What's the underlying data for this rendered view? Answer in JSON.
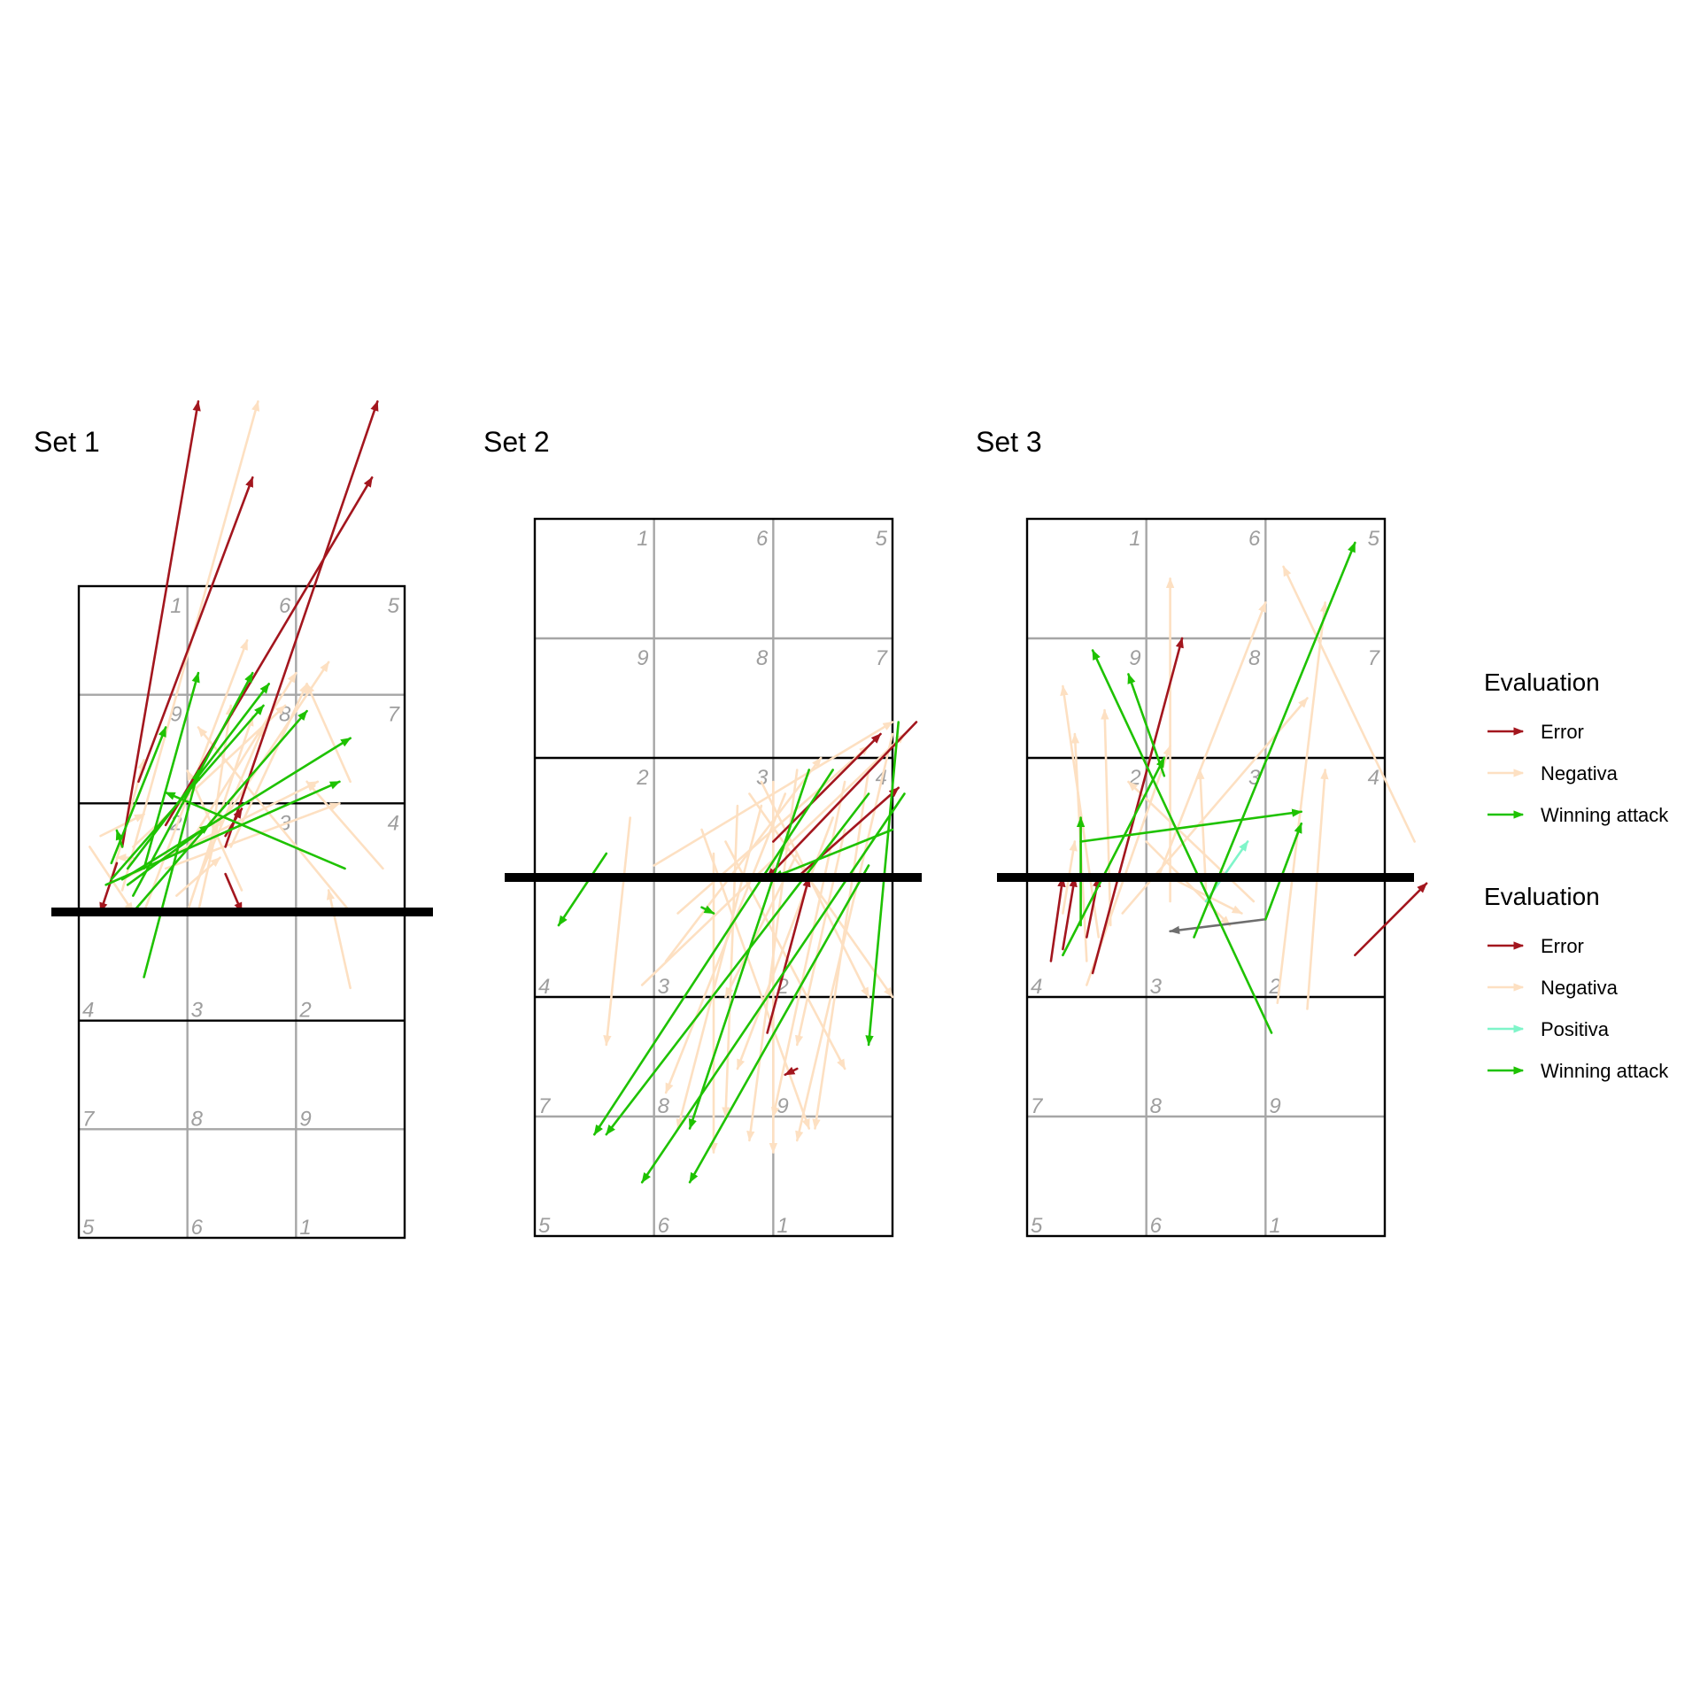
{
  "chart_data": {
    "type": "arrows",
    "colors": {
      "Error": "#a3161e",
      "Negativa": "#fde0c2",
      "Positiva": "#7ff5c9",
      "Winning attack": "#1ec200",
      "Other": "#6e6e6e"
    },
    "legends": [
      {
        "title": "Evaluation",
        "entries": [
          "Error",
          "Negativa",
          "Winning attack"
        ]
      },
      {
        "title": "Evaluation",
        "entries": [
          "Error",
          "Negativa",
          "Positiva",
          "Winning attack"
        ]
      }
    ],
    "panels": [
      {
        "title": "Set 1",
        "far_zones": [
          "1",
          "6",
          "5",
          "9",
          "8",
          "7",
          "2",
          "3",
          "4"
        ],
        "near_zones": [
          "4",
          "3",
          "2",
          "7",
          "8",
          "9",
          "5",
          "6",
          "1"
        ],
        "arrows": [
          {
            "x1": 0.55,
            "y1": 4.2,
            "x2": 1.6,
            "y2": 7.0,
            "e": "Error"
          },
          {
            "x1": 0.8,
            "y1": 3.8,
            "x2": 2.7,
            "y2": 7.0,
            "e": "Error"
          },
          {
            "x1": 1.35,
            "y1": 3.7,
            "x2": 1.5,
            "y2": 3.95,
            "e": "Error"
          },
          {
            "x1": 0.35,
            "y1": 3.45,
            "x2": 0.2,
            "y2": 3.0,
            "e": "Error"
          },
          {
            "x1": 1.35,
            "y1": 3.35,
            "x2": 1.5,
            "y2": 3.0,
            "e": "Error"
          },
          {
            "x1": 0.4,
            "y1": 3.6,
            "x2": 1.1,
            "y2": 7.7,
            "e": "Error"
          },
          {
            "x1": 1.35,
            "y1": 3.6,
            "x2": 2.75,
            "y2": 7.7,
            "e": "Error"
          },
          {
            "x1": 0.4,
            "y1": 3.2,
            "x2": 1.65,
            "y2": 7.7,
            "e": "Negativa"
          },
          {
            "x1": 0.6,
            "y1": 3.0,
            "x2": 1.55,
            "y2": 5.5,
            "e": "Negativa"
          },
          {
            "x1": 0.3,
            "y1": 3.3,
            "x2": 0.6,
            "y2": 4.4,
            "e": "Negativa"
          },
          {
            "x1": 0.1,
            "y1": 3.6,
            "x2": 0.5,
            "y2": 3.0,
            "e": "Negativa"
          },
          {
            "x1": 2.8,
            "y1": 3.4,
            "x2": 2.1,
            "y2": 4.2,
            "e": "Negativa"
          },
          {
            "x1": 2.5,
            "y1": 2.3,
            "x2": 2.3,
            "y2": 3.2,
            "e": "Negativa"
          },
          {
            "x1": 2.5,
            "y1": 3.0,
            "x2": 1.1,
            "y2": 4.7,
            "e": "Negativa"
          },
          {
            "x1": 1.2,
            "y1": 3.5,
            "x2": 1.4,
            "y2": 4.9,
            "e": "Negativa"
          },
          {
            "x1": 1.4,
            "y1": 3.6,
            "x2": 2.1,
            "y2": 5.1,
            "e": "Negativa"
          },
          {
            "x1": 2.5,
            "y1": 4.2,
            "x2": 2.1,
            "y2": 5.1,
            "e": "Negativa"
          },
          {
            "x1": 1.1,
            "y1": 3.3,
            "x2": 1.7,
            "y2": 4.7,
            "e": "Negativa"
          },
          {
            "x1": 0.5,
            "y1": 3.6,
            "x2": 1.9,
            "y2": 4.9,
            "e": "Negativa"
          },
          {
            "x1": 0.4,
            "y1": 3.3,
            "x2": 2.2,
            "y2": 4.2,
            "e": "Negativa"
          },
          {
            "x1": 1.0,
            "y1": 3.6,
            "x2": 2.0,
            "y2": 5.2,
            "e": "Negativa"
          },
          {
            "x1": 1.3,
            "y1": 3.8,
            "x2": 2.3,
            "y2": 5.3,
            "e": "Negativa"
          },
          {
            "x1": 0.8,
            "y1": 3.4,
            "x2": 2.4,
            "y2": 4.0,
            "e": "Negativa"
          },
          {
            "x1": 1.0,
            "y1": 3.0,
            "x2": 1.6,
            "y2": 4.8,
            "e": "Negativa"
          },
          {
            "x1": 1.5,
            "y1": 3.2,
            "x2": 1.0,
            "y2": 4.3,
            "e": "Negativa"
          },
          {
            "x1": 0.5,
            "y1": 3.5,
            "x2": 0.35,
            "y2": 3.5,
            "e": "Negativa"
          },
          {
            "x1": 1.1,
            "y1": 3.0,
            "x2": 1.3,
            "y2": 3.9,
            "e": "Negativa"
          },
          {
            "x1": 0.2,
            "y1": 3.7,
            "x2": 0.6,
            "y2": 3.9,
            "e": "Negativa"
          },
          {
            "x1": 0.9,
            "y1": 3.15,
            "x2": 1.3,
            "y2": 3.5,
            "e": "Negativa"
          },
          {
            "x1": 0.45,
            "y1": 3.25,
            "x2": 1.2,
            "y2": 3.8,
            "e": "Winning attack"
          },
          {
            "x1": 0.6,
            "y1": 3.4,
            "x2": 1.1,
            "y2": 5.2,
            "e": "Winning attack"
          },
          {
            "x1": 0.5,
            "y1": 3.15,
            "x2": 1.6,
            "y2": 5.2,
            "e": "Winning attack"
          },
          {
            "x1": 0.45,
            "y1": 3.4,
            "x2": 1.75,
            "y2": 5.1,
            "e": "Winning attack"
          },
          {
            "x1": 0.3,
            "y1": 3.3,
            "x2": 1.7,
            "y2": 4.9,
            "e": "Winning attack"
          },
          {
            "x1": 0.6,
            "y1": 2.4,
            "x2": 1.1,
            "y2": 4.3,
            "e": "Winning attack"
          },
          {
            "x1": 0.3,
            "y1": 3.45,
            "x2": 0.8,
            "y2": 4.7,
            "e": "Winning attack"
          },
          {
            "x1": 0.5,
            "y1": 3.0,
            "x2": 2.1,
            "y2": 4.85,
            "e": "Winning attack"
          },
          {
            "x1": 0.4,
            "y1": 3.3,
            "x2": 2.5,
            "y2": 4.6,
            "e": "Winning attack"
          },
          {
            "x1": 0.25,
            "y1": 3.25,
            "x2": 2.4,
            "y2": 4.2,
            "e": "Winning attack"
          },
          {
            "x1": 2.45,
            "y1": 3.4,
            "x2": 0.8,
            "y2": 4.1,
            "e": "Winning attack"
          },
          {
            "x1": 0.4,
            "y1": 3.6,
            "x2": 0.35,
            "y2": 3.75,
            "e": "Winning attack"
          }
        ]
      },
      {
        "title": "Set 2",
        "far_zones": [
          "1",
          "6",
          "5",
          "9",
          "8",
          "7",
          "2",
          "3",
          "4"
        ],
        "near_zones": [
          "4",
          "3",
          "2",
          "7",
          "8",
          "9",
          "5",
          "6",
          "1"
        ],
        "arrows": [
          {
            "x1": 2.0,
            "y1": 3.3,
            "x2": 2.9,
            "y2": 4.2,
            "e": "Error"
          },
          {
            "x1": 3.2,
            "y1": 4.3,
            "x2": 1.95,
            "y2": 3.0,
            "e": "Error"
          },
          {
            "x1": 1.95,
            "y1": 1.7,
            "x2": 2.3,
            "y2": 3.0,
            "e": "Error"
          },
          {
            "x1": 2.2,
            "y1": 3.0,
            "x2": 3.05,
            "y2": 3.75,
            "e": "Error"
          },
          {
            "x1": 2.2,
            "y1": 1.4,
            "x2": 2.1,
            "y2": 1.35,
            "e": "Error"
          },
          {
            "x1": 2.5,
            "y1": 3.9,
            "x2": 0.5,
            "y2": 0.85,
            "e": "Winning attack"
          },
          {
            "x1": 2.8,
            "y1": 3.7,
            "x2": 0.6,
            "y2": 0.85,
            "e": "Winning attack"
          },
          {
            "x1": 3.1,
            "y1": 3.7,
            "x2": 0.9,
            "y2": 0.45,
            "e": "Winning attack"
          },
          {
            "x1": 2.8,
            "y1": 3.1,
            "x2": 1.3,
            "y2": 0.45,
            "e": "Winning attack"
          },
          {
            "x1": 3.05,
            "y1": 4.3,
            "x2": 2.8,
            "y2": 1.6,
            "e": "Winning attack"
          },
          {
            "x1": 0.6,
            "y1": 3.2,
            "x2": 0.2,
            "y2": 2.6,
            "e": "Winning attack"
          },
          {
            "x1": 2.3,
            "y1": 3.9,
            "x2": 1.3,
            "y2": 0.9,
            "e": "Winning attack"
          },
          {
            "x1": 1.4,
            "y1": 2.75,
            "x2": 1.5,
            "y2": 2.7,
            "e": "Winning attack"
          },
          {
            "x1": 3.0,
            "y1": 3.4,
            "x2": 2.0,
            "y2": 3.0,
            "e": "Winning attack"
          },
          {
            "x1": 1.7,
            "y1": 3.6,
            "x2": 1.6,
            "y2": 1.0,
            "e": "Negativa"
          },
          {
            "x1": 0.8,
            "y1": 3.5,
            "x2": 0.6,
            "y2": 1.6,
            "e": "Negativa"
          },
          {
            "x1": 1.5,
            "y1": 3.2,
            "x2": 1.5,
            "y2": 0.7,
            "e": "Negativa"
          },
          {
            "x1": 1.9,
            "y1": 3.6,
            "x2": 1.2,
            "y2": 0.9,
            "e": "Negativa"
          },
          {
            "x1": 2.2,
            "y1": 3.9,
            "x2": 1.8,
            "y2": 0.8,
            "e": "Negativa"
          },
          {
            "x1": 2.0,
            "y1": 3.8,
            "x2": 2.0,
            "y2": 0.7,
            "e": "Negativa"
          },
          {
            "x1": 1.4,
            "y1": 3.4,
            "x2": 2.3,
            "y2": 0.9,
            "e": "Negativa"
          },
          {
            "x1": 2.6,
            "y1": 3.8,
            "x2": 2.0,
            "y2": 1.0,
            "e": "Negativa"
          },
          {
            "x1": 2.5,
            "y1": 3.5,
            "x2": 1.7,
            "y2": 1.4,
            "e": "Negativa"
          },
          {
            "x1": 2.1,
            "y1": 3.7,
            "x2": 1.1,
            "y2": 1.2,
            "e": "Negativa"
          },
          {
            "x1": 1.6,
            "y1": 3.3,
            "x2": 2.6,
            "y2": 1.4,
            "e": "Negativa"
          },
          {
            "x1": 1.9,
            "y1": 3.8,
            "x2": 2.8,
            "y2": 2.0,
            "e": "Negativa"
          },
          {
            "x1": 3.0,
            "y1": 4.2,
            "x2": 2.2,
            "y2": 0.8,
            "e": "Negativa"
          },
          {
            "x1": 2.8,
            "y1": 3.9,
            "x2": 2.35,
            "y2": 0.9,
            "e": "Negativa"
          },
          {
            "x1": 1.0,
            "y1": 3.1,
            "x2": 3.0,
            "y2": 4.3,
            "e": "Negativa"
          },
          {
            "x1": 0.9,
            "y1": 2.1,
            "x2": 3.1,
            "y2": 4.2,
            "e": "Negativa"
          },
          {
            "x1": 1.2,
            "y1": 2.7,
            "x2": 2.8,
            "y2": 4.1,
            "e": "Negativa"
          },
          {
            "x1": 1.1,
            "y1": 2.3,
            "x2": 2.4,
            "y2": 4.0,
            "e": "Negativa"
          },
          {
            "x1": 1.8,
            "y1": 3.7,
            "x2": 3.0,
            "y2": 2.0,
            "e": "Negativa"
          },
          {
            "x1": 2.2,
            "y1": 3.2,
            "x2": 1.6,
            "y2": 2.0,
            "e": "Negativa"
          },
          {
            "x1": 2.6,
            "y1": 3.4,
            "x2": 2.2,
            "y2": 1.6,
            "e": "Negativa"
          }
        ]
      },
      {
        "title": "Set 3",
        "far_zones": [
          "1",
          "6",
          "5",
          "9",
          "8",
          "7",
          "2",
          "3",
          "4"
        ],
        "near_zones": [
          "4",
          "3",
          "2",
          "7",
          "8",
          "9",
          "5",
          "6",
          "1"
        ],
        "arrows": [
          {
            "x1": 0.2,
            "y1": 2.3,
            "x2": 0.3,
            "y2": 3.0,
            "e": "Error"
          },
          {
            "x1": 0.3,
            "y1": 2.4,
            "x2": 0.4,
            "y2": 3.0,
            "e": "Error"
          },
          {
            "x1": 0.5,
            "y1": 2.5,
            "x2": 0.6,
            "y2": 3.0,
            "e": "Error"
          },
          {
            "x1": 0.55,
            "y1": 2.2,
            "x2": 1.3,
            "y2": 5.0,
            "e": "Error"
          },
          {
            "x1": 2.75,
            "y1": 2.35,
            "x2": 3.35,
            "y2": 2.95,
            "e": "Error"
          },
          {
            "x1": 0.45,
            "y1": 3.3,
            "x2": 2.3,
            "y2": 3.55,
            "e": "Winning attack"
          },
          {
            "x1": 2.0,
            "y1": 2.65,
            "x2": 2.3,
            "y2": 3.45,
            "e": "Winning attack"
          },
          {
            "x1": 1.4,
            "y1": 2.5,
            "x2": 2.75,
            "y2": 5.8,
            "e": "Winning attack"
          },
          {
            "x1": 2.05,
            "y1": 1.7,
            "x2": 0.55,
            "y2": 4.9,
            "e": "Winning attack"
          },
          {
            "x1": 1.15,
            "y1": 3.85,
            "x2": 0.85,
            "y2": 4.7,
            "e": "Winning attack"
          },
          {
            "x1": 0.3,
            "y1": 2.35,
            "x2": 1.15,
            "y2": 4.0,
            "e": "Winning attack"
          },
          {
            "x1": 0.45,
            "y1": 2.6,
            "x2": 0.45,
            "y2": 3.5,
            "e": "Winning attack"
          },
          {
            "x1": 1.5,
            "y1": 2.8,
            "x2": 1.85,
            "y2": 3.3,
            "e": "Positiva"
          },
          {
            "x1": 2.0,
            "y1": 2.65,
            "x2": 1.2,
            "y2": 2.55,
            "e": "Other"
          },
          {
            "x1": 0.5,
            "y1": 2.1,
            "x2": 1.2,
            "y2": 4.1,
            "e": "Negativa"
          },
          {
            "x1": 0.5,
            "y1": 2.3,
            "x2": 0.4,
            "y2": 4.2,
            "e": "Negativa"
          },
          {
            "x1": 0.6,
            "y1": 2.5,
            "x2": 0.3,
            "y2": 4.6,
            "e": "Negativa"
          },
          {
            "x1": 0.7,
            "y1": 2.6,
            "x2": 0.65,
            "y2": 4.4,
            "e": "Negativa"
          },
          {
            "x1": 0.3,
            "y1": 2.7,
            "x2": 0.4,
            "y2": 3.3,
            "e": "Negativa"
          },
          {
            "x1": 1.2,
            "y1": 2.8,
            "x2": 1.2,
            "y2": 5.5,
            "e": "Negativa"
          },
          {
            "x1": 1.5,
            "y1": 2.9,
            "x2": 1.45,
            "y2": 3.9,
            "e": "Negativa"
          },
          {
            "x1": 0.8,
            "y1": 2.7,
            "x2": 2.35,
            "y2": 4.5,
            "e": "Negativa"
          },
          {
            "x1": 1.1,
            "y1": 3.0,
            "x2": 2.0,
            "y2": 5.3,
            "e": "Negativa"
          },
          {
            "x1": 3.25,
            "y1": 3.3,
            "x2": 2.15,
            "y2": 5.6,
            "e": "Negativa"
          },
          {
            "x1": 2.1,
            "y1": 1.95,
            "x2": 2.5,
            "y2": 5.3,
            "e": "Negativa"
          },
          {
            "x1": 2.35,
            "y1": 1.9,
            "x2": 2.5,
            "y2": 3.9,
            "e": "Negativa"
          },
          {
            "x1": 1.9,
            "y1": 2.8,
            "x2": 0.85,
            "y2": 3.8,
            "e": "Negativa"
          },
          {
            "x1": 1.2,
            "y1": 3.0,
            "x2": 1.8,
            "y2": 2.7,
            "e": "Negativa"
          },
          {
            "x1": 1.0,
            "y1": 3.3,
            "x2": 1.7,
            "y2": 2.6,
            "e": "Negativa"
          }
        ]
      }
    ]
  }
}
